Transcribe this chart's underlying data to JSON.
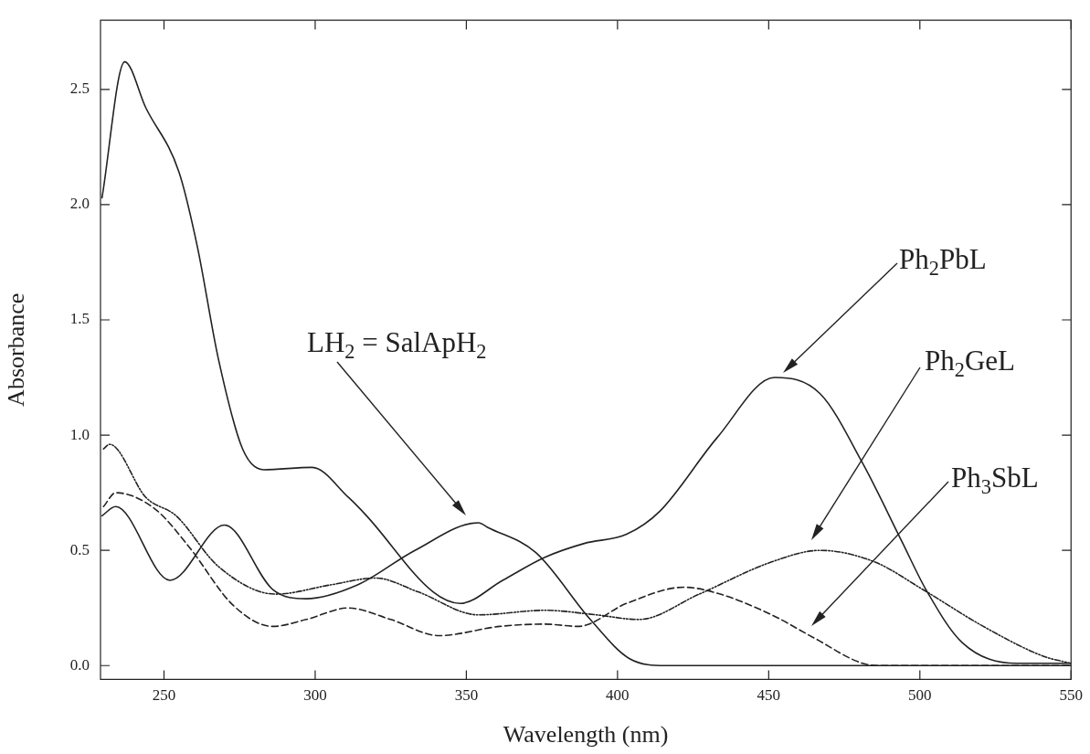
{
  "chart_data": {
    "type": "line",
    "xlabel": "Wavelength (nm)",
    "ylabel": "Absorbance",
    "xlim": [
      229,
      550
    ],
    "ylim": [
      -0.06,
      2.8
    ],
    "xticks": [
      250,
      300,
      350,
      400,
      450,
      500,
      550
    ],
    "yticks": [
      {
        "value": 0,
        "label": "0.0"
      },
      {
        "value": 0.5,
        "label": "0.5"
      },
      {
        "value": 1,
        "label": "1.0"
      },
      {
        "value": 1.5,
        "label": "1.5"
      },
      {
        "value": 2,
        "label": "2.0"
      },
      {
        "value": 2.5,
        "label": "2.5"
      }
    ],
    "grid": false,
    "legend": false,
    "marker": "none",
    "series": [
      {
        "color": "#222222",
        "line_style": "solid",
        "x": [
          229.5,
          237,
          244,
          255,
          261,
          268,
          276,
          283,
          299,
          311,
          317,
          339,
          348,
          362,
          376,
          389,
          403,
          414,
          433,
          452,
          467,
          481,
          494,
          502,
          514,
          532,
          550
        ],
        "values": [
          2.03,
          2.62,
          2.42,
          2.14,
          1.82,
          1.33,
          0.94,
          0.85,
          0.86,
          0.73,
          0.65,
          0.32,
          0.27,
          0.37,
          0.47,
          0.53,
          0.57,
          0.67,
          0.99,
          1.25,
          1.18,
          0.88,
          0.54,
          0.33,
          0.1,
          0.01,
          0.01
        ]
      },
      {
        "color": "#222222",
        "line_style": "solid",
        "x": [
          229.5,
          234,
          252,
          270,
          286,
          297,
          314,
          333,
          354,
          357,
          373,
          391,
          404,
          416,
          450,
          500,
          550
        ],
        "values": [
          0.65,
          0.69,
          0.37,
          0.61,
          0.33,
          0.29,
          0.35,
          0.5,
          0.62,
          0.6,
          0.49,
          0.2,
          0.03,
          0.0,
          0.0,
          0.0,
          0.0
        ]
      },
      {
        "color": "#222222",
        "line_style": "dotted",
        "x": [
          230,
          232,
          244,
          254,
          268,
          287,
          305,
          320,
          334,
          354,
          376,
          393,
          407,
          427,
          451,
          467,
          485,
          501,
          521,
          541,
          550
        ],
        "values": [
          0.94,
          0.96,
          0.73,
          0.65,
          0.43,
          0.31,
          0.35,
          0.38,
          0.32,
          0.22,
          0.24,
          0.22,
          0.2,
          0.31,
          0.45,
          0.5,
          0.45,
          0.33,
          0.17,
          0.04,
          0.01
        ]
      },
      {
        "color": "#222222",
        "line_style": "dashed",
        "x": [
          230,
          234,
          247,
          258,
          273,
          286,
          297,
          311,
          325,
          341,
          361,
          376,
          387,
          403,
          422,
          434,
          451,
          465,
          481,
          488,
          520,
          550
        ],
        "values": [
          0.69,
          0.75,
          0.68,
          0.52,
          0.26,
          0.17,
          0.2,
          0.25,
          0.2,
          0.13,
          0.17,
          0.18,
          0.17,
          0.27,
          0.34,
          0.31,
          0.22,
          0.12,
          0.01,
          0.0,
          0.0,
          0.0
        ]
      }
    ],
    "annotations": [
      "LH$_{2}$ = SalApH$_{2}$",
      "Ph$_{2}$PbL",
      "Ph$_{2}$GeL",
      "Ph$_{3}$SbL"
    ]
  }
}
